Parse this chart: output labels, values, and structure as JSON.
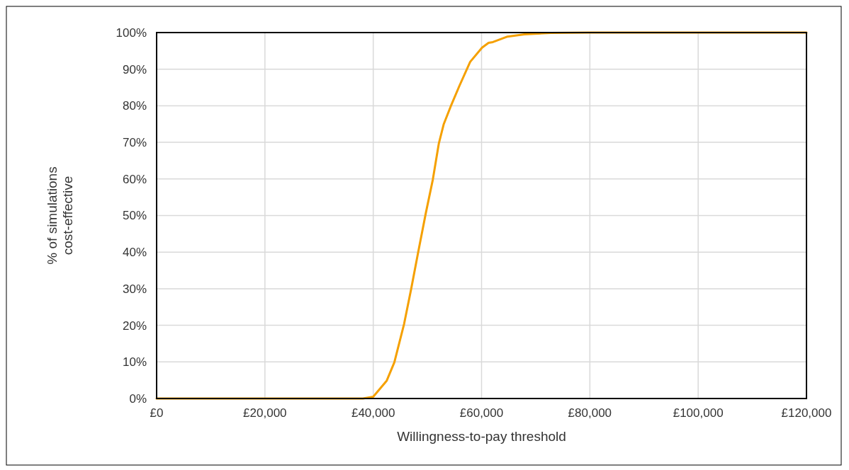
{
  "chart_data": {
    "type": "line",
    "xlabel": "Willingness-to-pay threshold",
    "ylabel": "% of simulations\ncost-effective",
    "series": [
      {
        "color": "#f5a000",
        "x": [
          0,
          10000,
          20000,
          30000,
          38100,
          40000,
          42500,
          43900,
          45700,
          47000,
          48300,
          49700,
          51000,
          52100,
          53000,
          54300,
          55900,
          57900,
          60100,
          61300,
          62100,
          64800,
          67900,
          72800,
          80000,
          100000,
          120000
        ],
        "values": [
          0,
          0,
          0,
          0,
          0,
          0.5,
          4.9,
          9.9,
          20.4,
          29.9,
          40,
          50.6,
          59.8,
          69.6,
          74.9,
          79.8,
          85.4,
          92,
          95.9,
          97.2,
          97.4,
          98.9,
          99.5,
          99.9,
          100,
          100,
          100
        ]
      }
    ],
    "xlim": [
      0,
      120000
    ],
    "xticks": [
      {
        "value": 0,
        "label": "£0"
      },
      {
        "value": 20000,
        "label": "£20,000"
      },
      {
        "value": 40000,
        "label": "£40,000"
      },
      {
        "value": 60000,
        "label": "£60,000"
      },
      {
        "value": 80000,
        "label": "£80,000"
      },
      {
        "value": 100000,
        "label": "£100,000"
      },
      {
        "value": 120000,
        "label": "£120,000"
      }
    ],
    "ylim": [
      0,
      100
    ],
    "yticks": [
      {
        "value": 0,
        "label": "0%"
      },
      {
        "value": 10,
        "label": "10%"
      },
      {
        "value": 20,
        "label": "20%"
      },
      {
        "value": 30,
        "label": "30%"
      },
      {
        "value": 40,
        "label": "40%"
      },
      {
        "value": 50,
        "label": "50%"
      },
      {
        "value": 60,
        "label": "60%"
      },
      {
        "value": 70,
        "label": "70%"
      },
      {
        "value": 80,
        "label": "80%"
      },
      {
        "value": 90,
        "label": "90%"
      },
      {
        "value": 100,
        "label": "100%"
      }
    ],
    "grid": true,
    "marker": "none",
    "line_style": "solid"
  }
}
